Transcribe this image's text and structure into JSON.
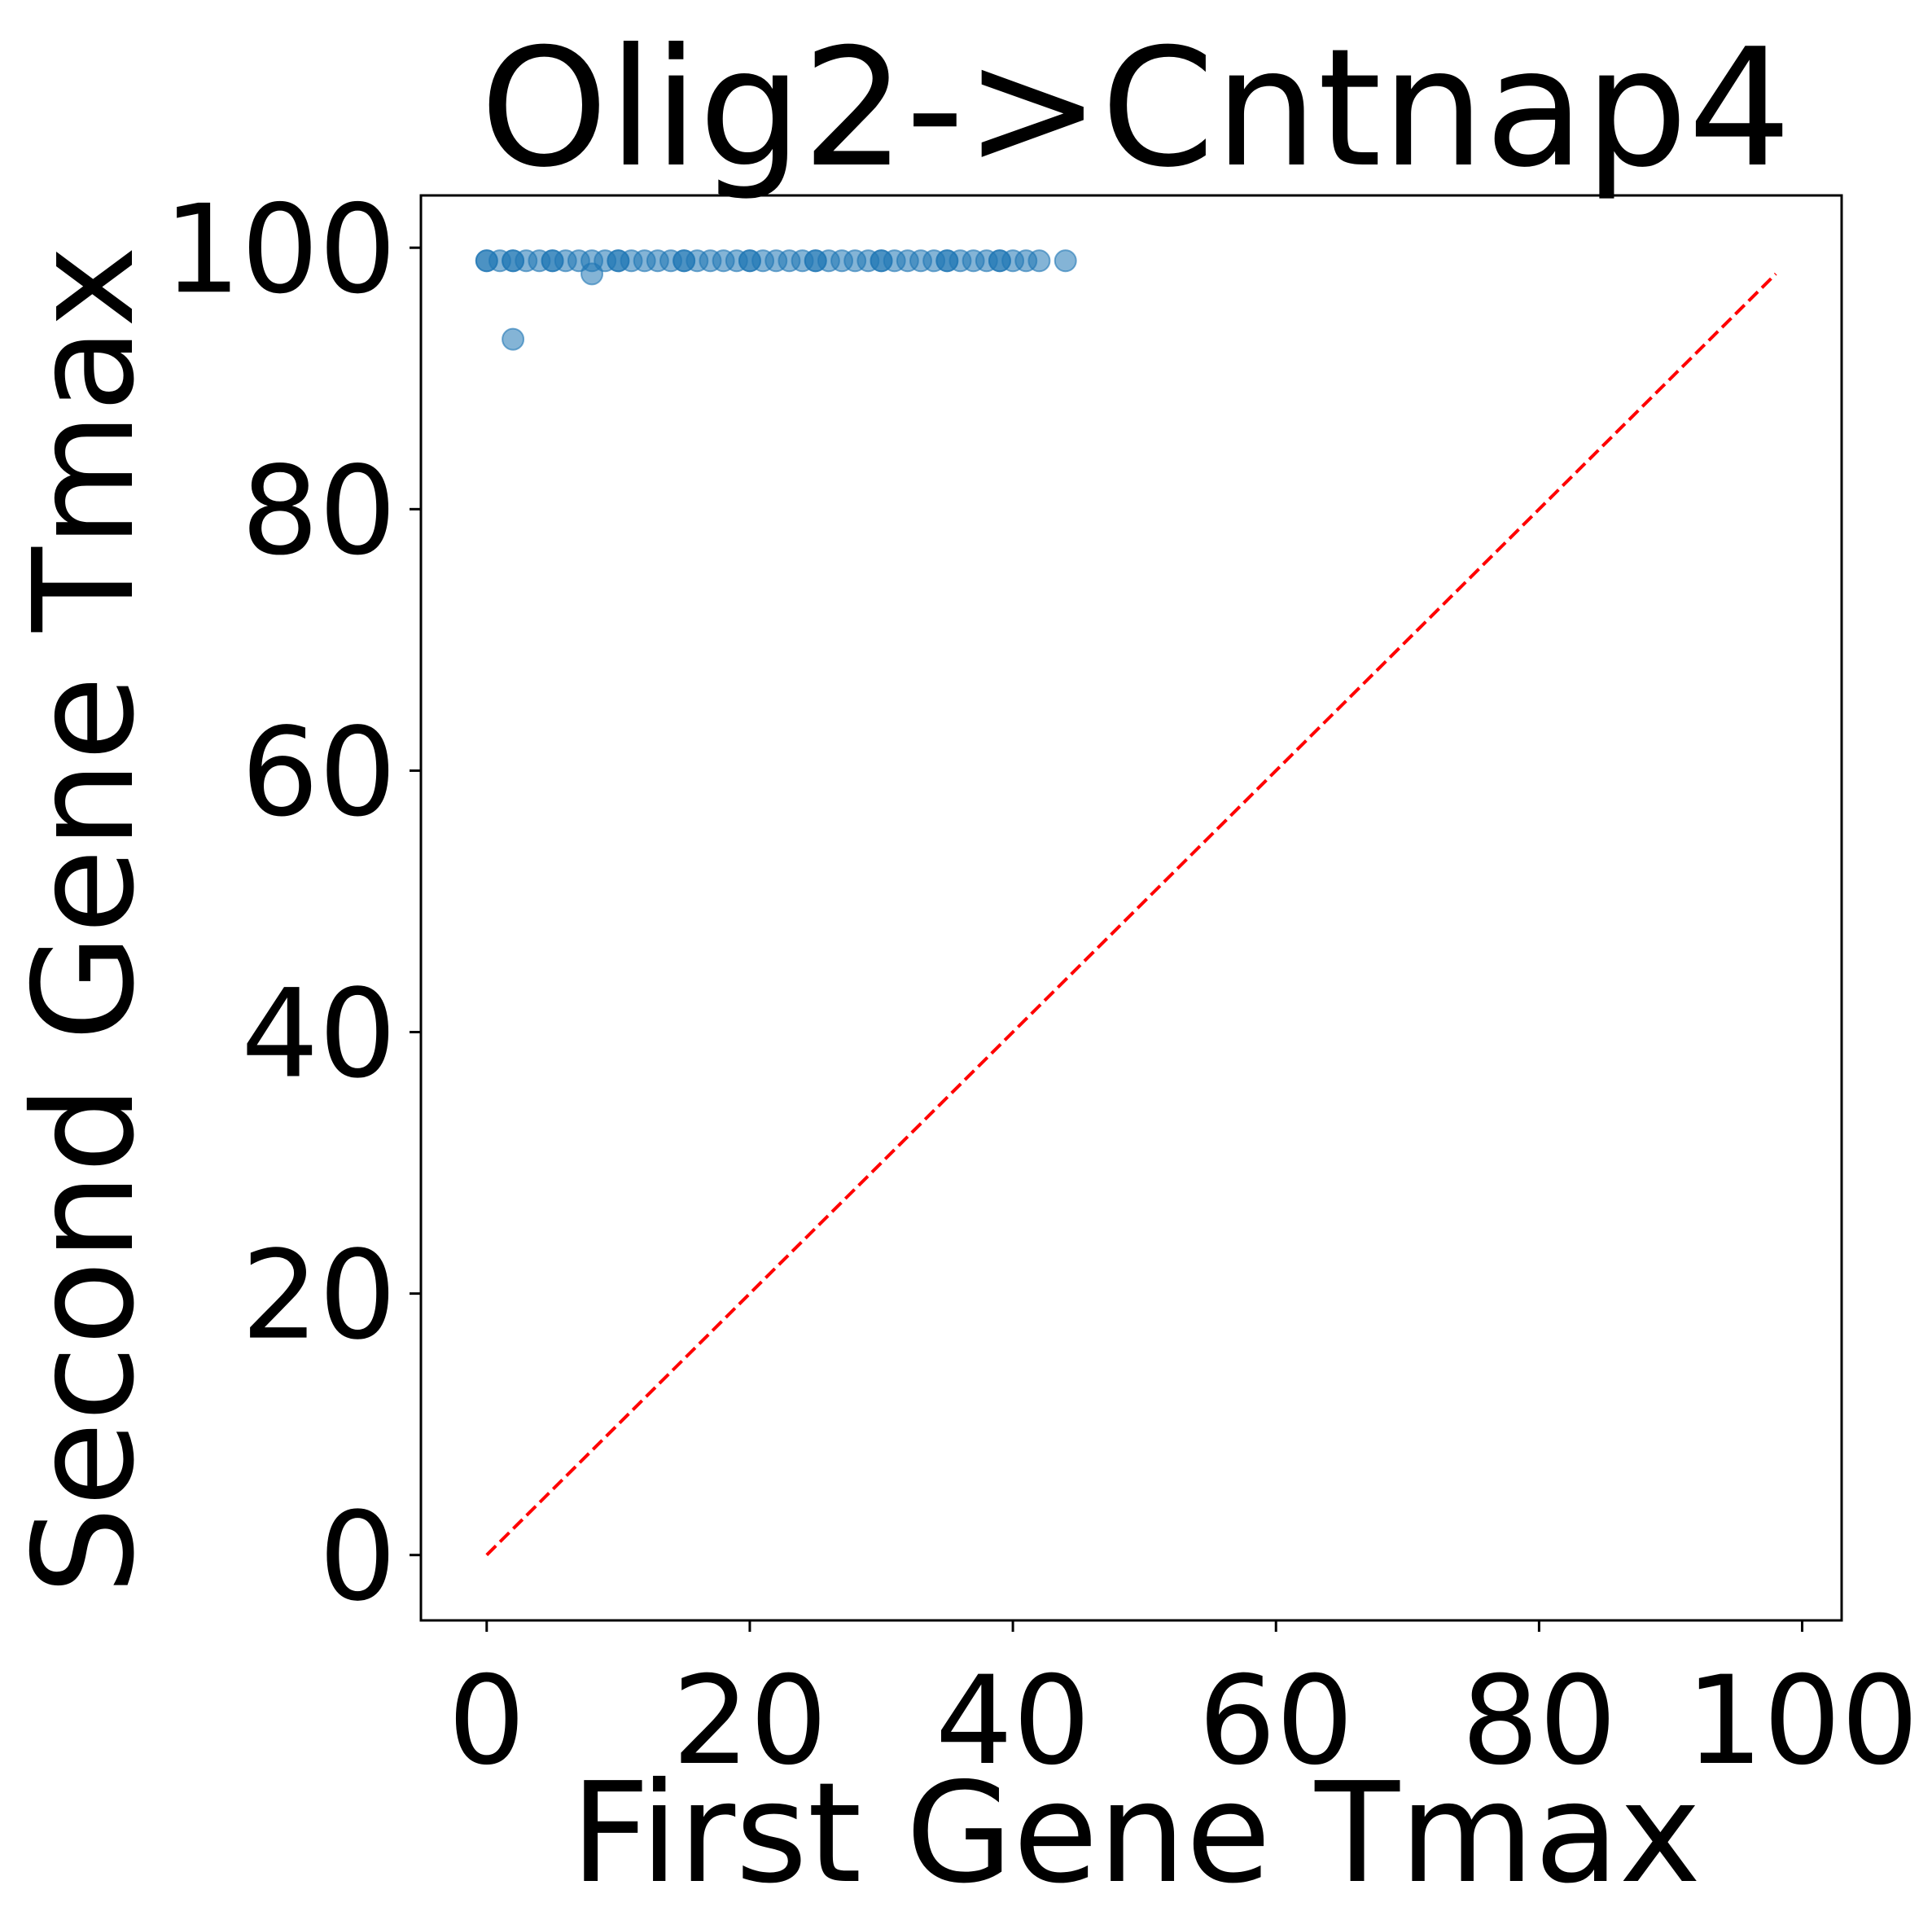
{
  "chart_data": {
    "type": "scatter",
    "title": "Olig2->Cntnap4",
    "xlabel": "First Gene Tmax",
    "ylabel": "Second Gene Tmax",
    "xlim": [
      -5,
      103
    ],
    "ylim": [
      -5,
      104
    ],
    "xticks": [
      0,
      20,
      40,
      60,
      80,
      100
    ],
    "yticks": [
      0,
      20,
      40,
      60,
      80,
      100
    ],
    "grid": false,
    "point_color": "#1f77b4",
    "point_alpha": 0.55,
    "points": [
      [
        0,
        99
      ],
      [
        1,
        99
      ],
      [
        2,
        99
      ],
      [
        3,
        99
      ],
      [
        4,
        99
      ],
      [
        5,
        99
      ],
      [
        6,
        99
      ],
      [
        7,
        99
      ],
      [
        8,
        99
      ],
      [
        9,
        99
      ],
      [
        10,
        99
      ],
      [
        11,
        99
      ],
      [
        12,
        99
      ],
      [
        13,
        99
      ],
      [
        14,
        99
      ],
      [
        15,
        99
      ],
      [
        16,
        99
      ],
      [
        17,
        99
      ],
      [
        18,
        99
      ],
      [
        19,
        99
      ],
      [
        20,
        99
      ],
      [
        21,
        99
      ],
      [
        22,
        99
      ],
      [
        23,
        99
      ],
      [
        24,
        99
      ],
      [
        25,
        99
      ],
      [
        26,
        99
      ],
      [
        27,
        99
      ],
      [
        28,
        99
      ],
      [
        29,
        99
      ],
      [
        30,
        99
      ],
      [
        31,
        99
      ],
      [
        32,
        99
      ],
      [
        33,
        99
      ],
      [
        34,
        99
      ],
      [
        35,
        99
      ],
      [
        36,
        99
      ],
      [
        37,
        99
      ],
      [
        38,
        99
      ],
      [
        39,
        99
      ],
      [
        40,
        99
      ],
      [
        41,
        99
      ],
      [
        42,
        99
      ],
      [
        44,
        99
      ],
      [
        0,
        99
      ],
      [
        2,
        99
      ],
      [
        5,
        99
      ],
      [
        10,
        99
      ],
      [
        15,
        99
      ],
      [
        20,
        99
      ],
      [
        25,
        99
      ],
      [
        30,
        99
      ],
      [
        35,
        99
      ],
      [
        39,
        99
      ],
      [
        8,
        98
      ],
      [
        2,
        93
      ]
    ],
    "reference_line": {
      "from": [
        0,
        0
      ],
      "to": [
        98,
        98
      ],
      "color": "#ff0000",
      "style": "dashed"
    }
  }
}
